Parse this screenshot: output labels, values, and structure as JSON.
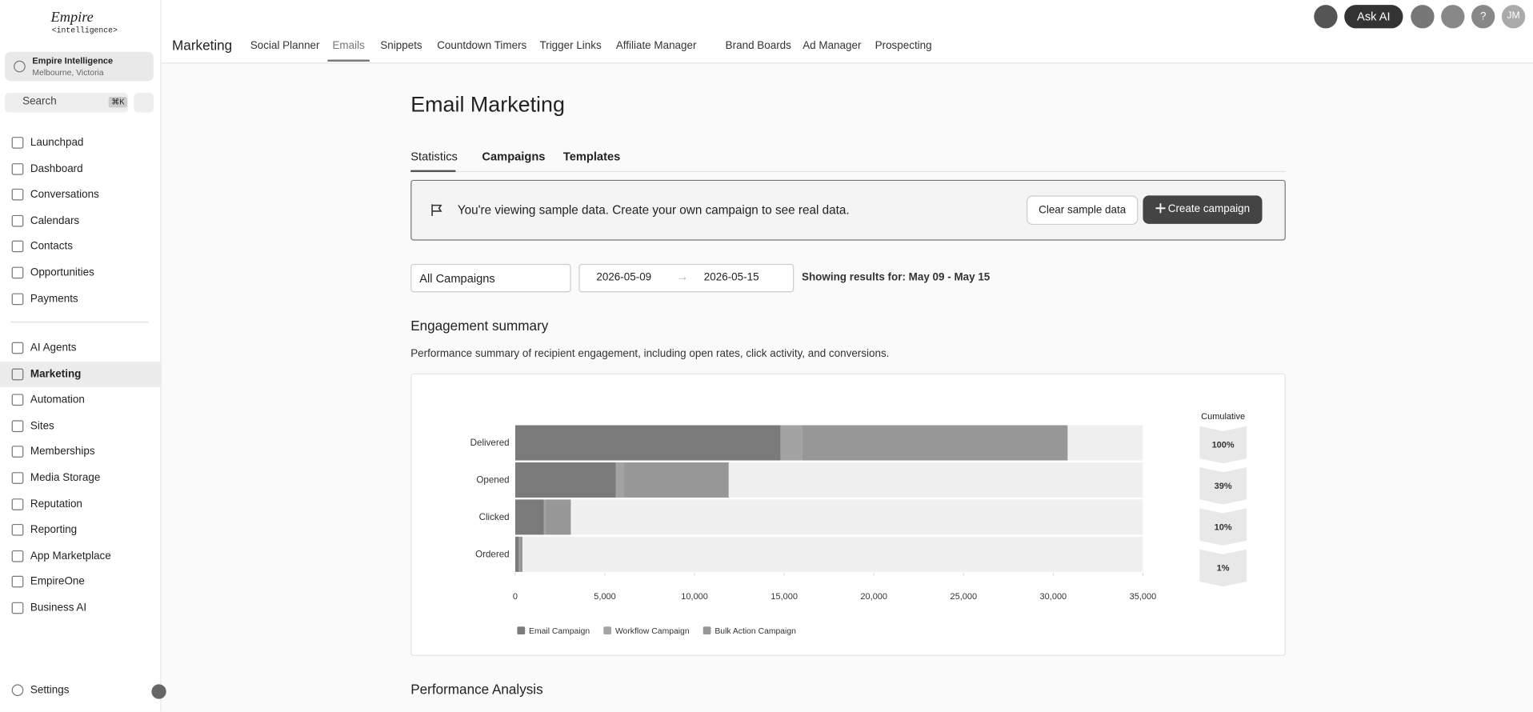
{
  "sidebar": {
    "brand": "Empire",
    "brand_sub": "<intelligence>",
    "account": {
      "name": "Empire Intelligence",
      "location": "Melbourne, Victoria"
    },
    "search": "Search",
    "shortcut": "⌘K",
    "nav": [
      "Launchpad",
      "Dashboard",
      "Conversations",
      "Calendars",
      "Contacts",
      "Opportunities",
      "Payments"
    ],
    "nav2": [
      "AI Agents",
      "Marketing",
      "Automation",
      "Sites",
      "Memberships",
      "Media Storage",
      "Reputation",
      "Reporting",
      "App Marketplace",
      "EmpireOne",
      "Business AI"
    ],
    "active": "Marketing",
    "settings": "Settings"
  },
  "topbar": {
    "section": "Marketing",
    "tabs": [
      "Social Planner",
      "Emails",
      "Snippets",
      "Countdown Timers",
      "Trigger Links",
      "Affiliate Manager",
      "Brand Boards",
      "Ad Manager",
      "Prospecting"
    ],
    "active_tab": "Emails",
    "ask_ai": "Ask AI",
    "avatar": "JM"
  },
  "page": {
    "title": "Email Marketing",
    "tabs": [
      "Statistics",
      "Campaigns",
      "Templates"
    ],
    "active_tab": "Statistics",
    "banner": "You're viewing sample data. Create your own campaign to see real data.",
    "clear": "Clear sample data",
    "create": "Create campaign",
    "filter": "All Campaigns",
    "date_from": "2026-05-09",
    "date_to": "2026-05-15",
    "showing": "Showing results for: May 09 - May 15",
    "summary_title": "Engagement summary",
    "summary_desc": "Performance summary of recipient engagement, including open rates, click activity, and conversions.",
    "next_section": "Performance Analysis"
  },
  "chart_data": {
    "type": "bar",
    "orientation": "horizontal",
    "stacked": true,
    "categories": [
      "Delivered",
      "Opened",
      "Clicked",
      "Ordered"
    ],
    "series": [
      {
        "name": "Email Campaign",
        "color": "#7a7a7a",
        "values": [
          14800,
          5600,
          1600,
          200
        ]
      },
      {
        "name": "Workflow Campaign",
        "color": "#a3a3a3",
        "values": [
          1200,
          450,
          100,
          50
        ]
      },
      {
        "name": "Bulk Action Campaign",
        "color": "#979797",
        "values": [
          14800,
          5850,
          1400,
          150
        ]
      }
    ],
    "xlim": [
      0,
      35000
    ],
    "xticks": [
      0,
      {
        "value": 5000,
        "label": "5,000"
      },
      {
        "value": 10000,
        "label": "10,000"
      },
      {
        "value": 15000,
        "label": "15,000"
      },
      {
        "value": 20000,
        "label": "20,000"
      },
      {
        "value": 25000,
        "label": "25,000"
      },
      {
        "value": 30000,
        "label": "30,000"
      },
      {
        "value": 35000,
        "label": "35,000"
      }
    ],
    "legend": "bottom",
    "cumulative": {
      "title": "Cumulative",
      "values": [
        100,
        39,
        10,
        1
      ],
      "value_labels": [
        "100%",
        "39%",
        "10%",
        "1%"
      ]
    }
  }
}
